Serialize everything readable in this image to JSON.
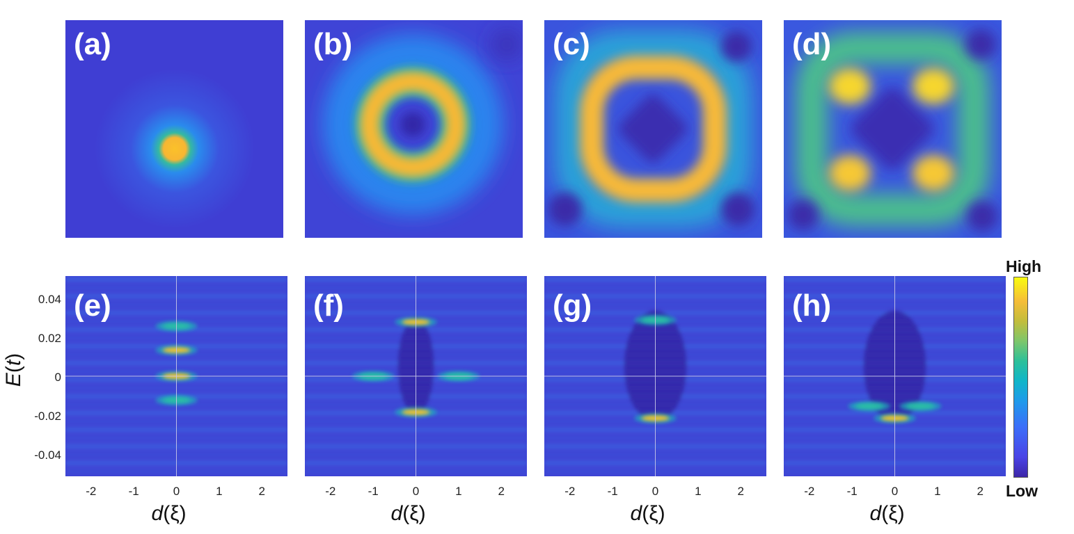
{
  "chart_data": [
    {
      "type": "heatmap",
      "panel_label": "(a)",
      "pattern": "central-spot"
    },
    {
      "type": "heatmap",
      "panel_label": "(b)",
      "pattern": "ring"
    },
    {
      "type": "heatmap",
      "panel_label": "(c)",
      "pattern": "rounded-square-ring"
    },
    {
      "type": "heatmap",
      "panel_label": "(d)",
      "pattern": "four-corner-lobes"
    },
    {
      "type": "heatmap",
      "panel_label": "(e)",
      "xlabel": "d(ξ)",
      "ylabel": "E(t)",
      "xlim": [
        -2.6,
        2.6
      ],
      "ylim": [
        -0.05,
        0.05
      ],
      "peaks": [
        {
          "d": 0,
          "E": 0.013,
          "intensity": 1.0
        },
        {
          "d": 0,
          "E": 0.0,
          "intensity": 1.0
        },
        {
          "d": 0,
          "E": 0.025,
          "intensity": 0.55
        },
        {
          "d": 0,
          "E": -0.012,
          "intensity": 0.45
        }
      ]
    },
    {
      "type": "heatmap",
      "panel_label": "(f)",
      "xlabel": "d(ξ)",
      "xlim": [
        -2.6,
        2.6
      ],
      "ylim": [
        -0.05,
        0.05
      ],
      "peaks": [
        {
          "d": 0,
          "E": 0.027,
          "intensity": 0.95
        },
        {
          "d": 0,
          "E": -0.018,
          "intensity": 1.0
        },
        {
          "d": -1,
          "E": 0.0,
          "intensity": 0.5
        },
        {
          "d": 1,
          "E": 0.0,
          "intensity": 0.5
        }
      ]
    },
    {
      "type": "heatmap",
      "panel_label": "(g)",
      "xlabel": "d(ξ)",
      "xlim": [
        -2.6,
        2.6
      ],
      "ylim": [
        -0.05,
        0.05
      ],
      "peaks": [
        {
          "d": 0,
          "E": -0.021,
          "intensity": 1.0
        },
        {
          "d": 0,
          "E": 0.028,
          "intensity": 0.5
        }
      ]
    },
    {
      "type": "heatmap",
      "panel_label": "(h)",
      "xlabel": "d(ξ)",
      "xlim": [
        -2.6,
        2.6
      ],
      "ylim": [
        -0.05,
        0.05
      ],
      "peaks": [
        {
          "d": 0,
          "E": -0.021,
          "intensity": 1.0
        },
        {
          "d": -0.6,
          "E": -0.015,
          "intensity": 0.5
        },
        {
          "d": 0.6,
          "E": -0.015,
          "intensity": 0.5
        }
      ]
    }
  ],
  "y_ticks": [
    "0.04",
    "0.02",
    "0",
    "-0.02",
    "-0.04"
  ],
  "x_ticks": [
    "-2",
    "-1",
    "0",
    "1",
    "2"
  ],
  "axis_labels": {
    "x_var": "d",
    "x_arg": "ξ",
    "y_var": "E",
    "y_arg": "t"
  },
  "colorbar": {
    "high": "High",
    "low": "Low"
  },
  "colors": {
    "background": "#3e3ad0",
    "low": "#3d26a8",
    "high": "#f9fb0e"
  }
}
